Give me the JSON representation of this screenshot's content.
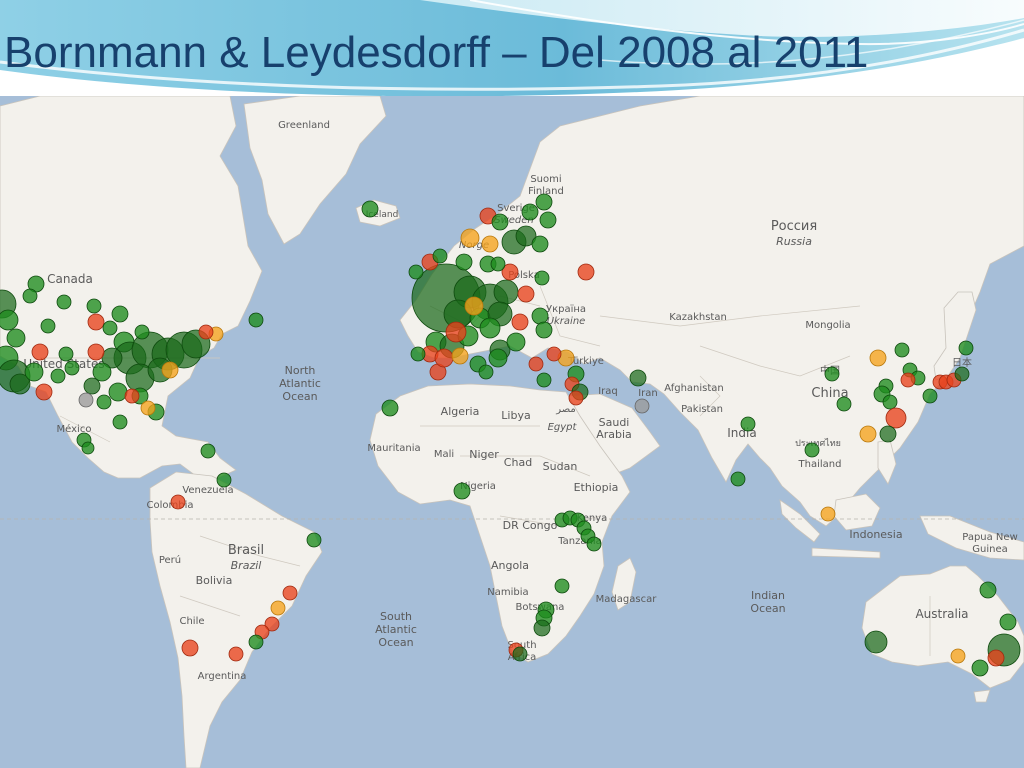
{
  "slide": {
    "title": "Bornmann & Leydesdorff – Del 2008 al 2011"
  },
  "map": {
    "colors": {
      "ocean": "#a6bed8",
      "land": "#f3f1ec",
      "border": "#c8c3bb",
      "label": "#555555",
      "high": "#1e8c1e",
      "mid": "#f5a31c",
      "low": "#e8421c",
      "neutral": "#9a9a9a"
    },
    "labels": [
      {
        "key": "greenland",
        "text": "Greenland"
      },
      {
        "key": "iceland",
        "text": "Iceland"
      },
      {
        "key": "suomi",
        "text": "Suomi"
      },
      {
        "key": "finland",
        "text": "Finland"
      },
      {
        "key": "sverige",
        "text": "Sverige"
      },
      {
        "key": "sweden",
        "text": "Sweden"
      },
      {
        "key": "norge",
        "text": "Norge"
      },
      {
        "key": "rossiya",
        "text": "Россия"
      },
      {
        "key": "russia",
        "text": "Russia"
      },
      {
        "key": "canada",
        "text": "Canada"
      },
      {
        "key": "polska",
        "text": "Polska"
      },
      {
        "key": "ukraina",
        "text": "Україна"
      },
      {
        "key": "ukraine",
        "text": "Ukraine"
      },
      {
        "key": "kazakhstan",
        "text": "Kazakhstan"
      },
      {
        "key": "mongolia",
        "text": "Mongolia"
      },
      {
        "key": "united-states",
        "text": "United States"
      },
      {
        "key": "north-atlantic-1",
        "text": "North"
      },
      {
        "key": "north-atlantic-2",
        "text": "Atlantic"
      },
      {
        "key": "north-atlantic-3",
        "text": "Ocean"
      },
      {
        "key": "turkiye",
        "text": "Türkiye"
      },
      {
        "key": "iraq",
        "text": "Iraq"
      },
      {
        "key": "iran",
        "text": "Iran"
      },
      {
        "key": "afghanistan",
        "text": "Afghanistan"
      },
      {
        "key": "pakistan",
        "text": "Pakistan"
      },
      {
        "key": "china-native",
        "text": "中国"
      },
      {
        "key": "china",
        "text": "China"
      },
      {
        "key": "japan",
        "text": "日本"
      },
      {
        "key": "algeria",
        "text": "Algeria"
      },
      {
        "key": "libya",
        "text": "Libya"
      },
      {
        "key": "egypt-native",
        "text": "مصر"
      },
      {
        "key": "egypt",
        "text": "Egypt"
      },
      {
        "key": "saudi-1",
        "text": "Saudi"
      },
      {
        "key": "saudi-2",
        "text": "Arabia"
      },
      {
        "key": "india",
        "text": "India"
      },
      {
        "key": "mexico",
        "text": "México"
      },
      {
        "key": "mauritania",
        "text": "Mauritania"
      },
      {
        "key": "mali",
        "text": "Mali"
      },
      {
        "key": "niger",
        "text": "Niger"
      },
      {
        "key": "chad",
        "text": "Chad"
      },
      {
        "key": "sudan",
        "text": "Sudan"
      },
      {
        "key": "thailand-native",
        "text": "ประเทศไทย"
      },
      {
        "key": "thailand",
        "text": "Thailand"
      },
      {
        "key": "venezuela",
        "text": "Venezuela"
      },
      {
        "key": "nigeria",
        "text": "Nigeria"
      },
      {
        "key": "ethiopia",
        "text": "Ethiopia"
      },
      {
        "key": "colombia",
        "text": "Colombia"
      },
      {
        "key": "dr-congo",
        "text": "DR Congo"
      },
      {
        "key": "kenya",
        "text": "Kenya"
      },
      {
        "key": "tanzania",
        "text": "Tanzania"
      },
      {
        "key": "indonesia",
        "text": "Indonesia"
      },
      {
        "key": "papua-1",
        "text": "Papua New"
      },
      {
        "key": "papua-2",
        "text": "Guinea"
      },
      {
        "key": "peru",
        "text": "Perú"
      },
      {
        "key": "brasil",
        "text": "Brasil"
      },
      {
        "key": "brazil",
        "text": "Brazil"
      },
      {
        "key": "bolivia",
        "text": "Bolivia"
      },
      {
        "key": "angola",
        "text": "Angola"
      },
      {
        "key": "namibia",
        "text": "Namibia"
      },
      {
        "key": "botswana",
        "text": "Botswana"
      },
      {
        "key": "madagascar",
        "text": "Madagascar"
      },
      {
        "key": "indian-ocean-1",
        "text": "Indian"
      },
      {
        "key": "indian-ocean-2",
        "text": "Ocean"
      },
      {
        "key": "australia",
        "text": "Australia"
      },
      {
        "key": "chile",
        "text": "Chile"
      },
      {
        "key": "south-atlantic-1",
        "text": "South"
      },
      {
        "key": "south-atlantic-2",
        "text": "Atlantic"
      },
      {
        "key": "south-atlantic-3",
        "text": "Ocean"
      },
      {
        "key": "south-africa-1",
        "text": "South"
      },
      {
        "key": "south-africa-2",
        "text": "Africa"
      },
      {
        "key": "argentina",
        "text": "Argentina"
      }
    ]
  }
}
